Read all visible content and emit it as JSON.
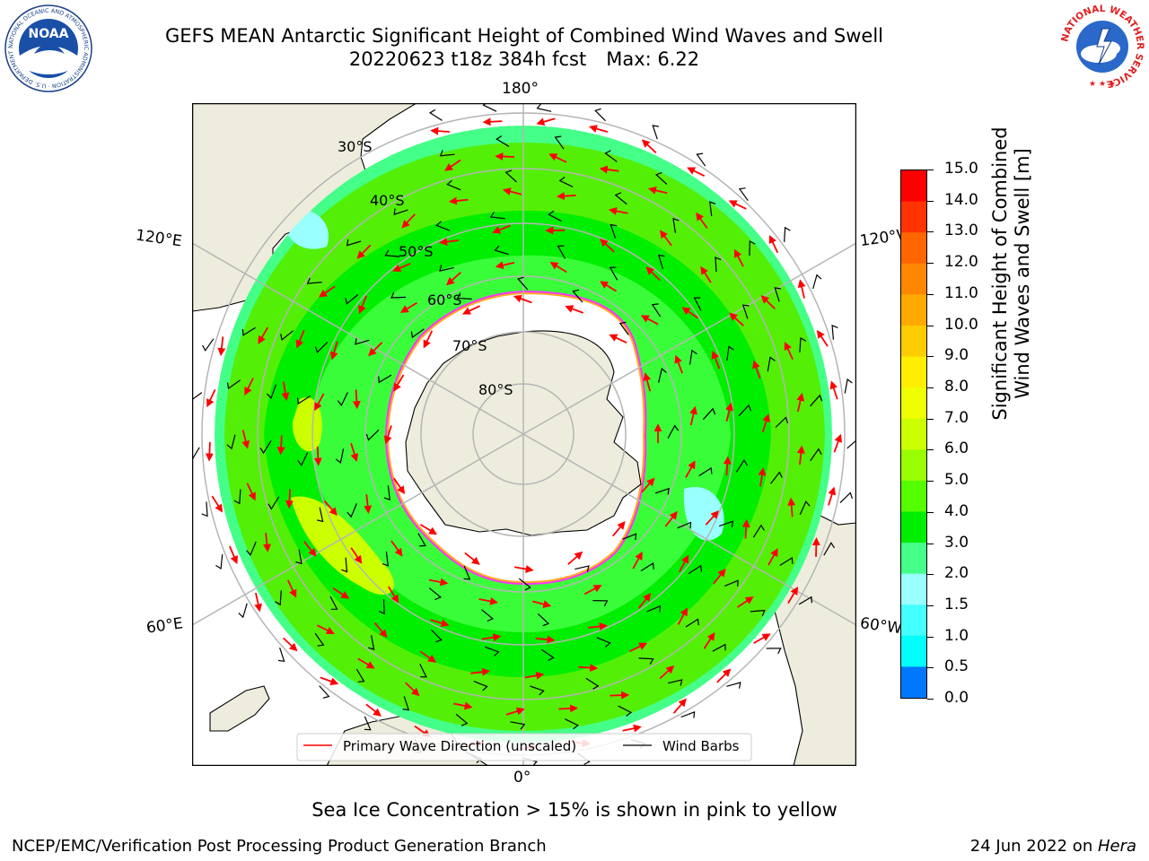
{
  "title": {
    "line1": "GEFS MEAN Antarctic Significant Height of Combined Wind Waves and Swell",
    "line2_run": "20220623 t18z 384h fcst",
    "line2_max": "Max: 6.22"
  },
  "logos": {
    "noaa_text": "NOAA",
    "noaa_ring": "NATIONAL OCEANIC AND ATMOSPHERIC ADMINISTRATION · U.S. DEPARTMENT OF COMMERCE",
    "nws_ring": "NATIONAL WEATHER SERVICE"
  },
  "map": {
    "projection": "south polar stereographic",
    "meridian_labels": {
      "top": "180°",
      "bottom": "0°",
      "left_upper": "120°E",
      "left_lower": "60°E",
      "right_upper": "120°W",
      "right_lower": "60°W"
    },
    "parallel_labels": [
      "30°S",
      "40°S",
      "50°S",
      "60°S",
      "70°S",
      "80°S"
    ],
    "legend": {
      "primary": "Primary Wave Direction (unscaled)",
      "secondary": "Wind Barbs"
    },
    "colors": {
      "land": "#eeecdc",
      "ice": "#ffffff",
      "ice_edge": [
        "#ff33ff",
        "#ffaa22"
      ],
      "wave_arrow": "#ff0000",
      "barb": "#000000",
      "grid": "#b5b5b5"
    }
  },
  "colorbar": {
    "label_line1": "Significant Height of Combined",
    "label_line2": "Wind Waves and Swell [m]",
    "ticks": [
      "15.0",
      "14.0",
      "13.0",
      "12.0",
      "11.0",
      "10.0",
      "9.0",
      "8.0",
      "7.0",
      "6.0",
      "5.0",
      "4.0",
      "3.0",
      "2.0",
      "1.5",
      "1.0",
      "0.5",
      "0.0"
    ],
    "colors": [
      "#ff0000",
      "#ff3300",
      "#ff6600",
      "#ff8800",
      "#ffaa00",
      "#ffcc00",
      "#ffee00",
      "#eeff00",
      "#ccff00",
      "#99ff00",
      "#55ff00",
      "#00ee00",
      "#44ff88",
      "#99ffff",
      "#44ffff",
      "#00ffff",
      "#0077ff",
      "#0000ff"
    ]
  },
  "subtitle": "Sea Ice Concentration > 15% is shown in pink to yellow",
  "footer": {
    "left": "NCEP/EMC/Verification Post Processing Product Generation Branch",
    "right_prefix": "24 Jun 2022 on ",
    "right_host": "Hera"
  }
}
